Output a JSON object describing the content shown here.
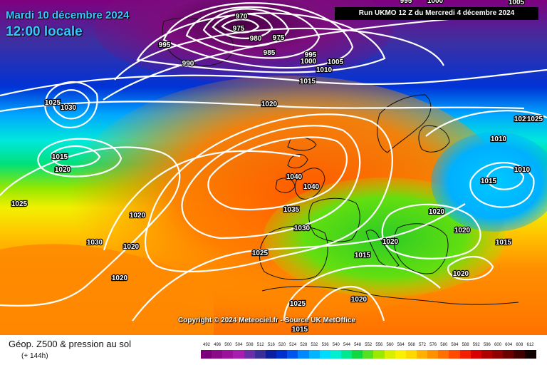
{
  "header": {
    "date": "Mardi 10 décembre 2024",
    "time": "12:00 locale",
    "run": "Run UKMO 12 Z du Mercredi 4 décembre 2024"
  },
  "copyright": "Copyright © 2024 Meteociel.fr - Source UK MetOffice",
  "footer": {
    "title": "Géop. Z500 & pression au sol",
    "subtitle": "(+ 144h)"
  },
  "scale": {
    "values": [
      "492",
      "496",
      "500",
      "504",
      "508",
      "512",
      "516",
      "520",
      "524",
      "528",
      "532",
      "536",
      "540",
      "544",
      "548",
      "552",
      "556",
      "560",
      "564",
      "568",
      "572",
      "576",
      "580",
      "584",
      "588",
      "592",
      "596",
      "600",
      "604",
      "608",
      "612"
    ],
    "colors": [
      "#7a007a",
      "#8a0a8a",
      "#9b119b",
      "#a51eb0",
      "#6a2fa8",
      "#3a2f9a",
      "#0b1fa0",
      "#0030cc",
      "#0055ee",
      "#0088ff",
      "#00b4ff",
      "#00dcff",
      "#00efd0",
      "#00e890",
      "#10d840",
      "#55e020",
      "#9be800",
      "#d8f000",
      "#fbf000",
      "#ffd800",
      "#ffb000",
      "#ff9000",
      "#ff7000",
      "#ff4a00",
      "#f02000",
      "#d80000",
      "#b00000",
      "#900000",
      "#6a0000",
      "#400000",
      "#100000"
    ]
  },
  "isobars": [
    {
      "text": "1025",
      "type": "pressure"
    },
    {
      "text": "1030",
      "type": "pressure"
    },
    {
      "text": "1015",
      "type": "pressure"
    },
    {
      "text": "1020",
      "type": "pressure"
    },
    {
      "text": "1025",
      "type": "pressure"
    },
    {
      "text": "1020",
      "type": "pressure"
    },
    {
      "text": "1030",
      "type": "pressure"
    },
    {
      "text": "1020",
      "type": "pressure"
    },
    {
      "text": "1020",
      "type": "pressure"
    },
    {
      "text": "995",
      "type": "pressure"
    },
    {
      "text": "990",
      "type": "pressure"
    },
    {
      "text": "985",
      "type": "pressure"
    },
    {
      "text": "980",
      "type": "pressure"
    },
    {
      "text": "975",
      "type": "pressure"
    },
    {
      "text": "975",
      "type": "pressure"
    },
    {
      "text": "970",
      "type": "pressure"
    },
    {
      "text": "995",
      "type": "pressure"
    },
    {
      "text": "1000",
      "type": "pressure"
    },
    {
      "text": "1005",
      "type": "pressure"
    },
    {
      "text": "1010",
      "type": "pressure"
    },
    {
      "text": "1015",
      "type": "pressure"
    },
    {
      "text": "1020",
      "type": "pressure"
    },
    {
      "text": "1040",
      "type": "pressure"
    },
    {
      "text": "1040",
      "type": "pressure"
    },
    {
      "text": "1035",
      "type": "pressure"
    },
    {
      "text": "1030",
      "type": "pressure"
    },
    {
      "text": "1025",
      "type": "pressure"
    },
    {
      "text": "1015",
      "type": "pressure"
    },
    {
      "text": "1020",
      "type": "pressure"
    },
    {
      "text": "1025",
      "type": "pressure"
    },
    {
      "text": "1020",
      "type": "pressure"
    },
    {
      "text": "1015",
      "type": "pressure"
    },
    {
      "text": "1010",
      "type": "pressure"
    },
    {
      "text": "1015",
      "type": "pressure"
    },
    {
      "text": "1020",
      "type": "pressure"
    },
    {
      "text": "1015",
      "type": "pressure"
    },
    {
      "text": "1010",
      "type": "pressure"
    },
    {
      "text": "1020",
      "type": "pressure"
    },
    {
      "text": "1025",
      "type": "pressure"
    },
    {
      "text": "1025",
      "type": "pressure"
    },
    {
      "text": "995",
      "type": "pressure"
    },
    {
      "text": "1000",
      "type": "pressure"
    },
    {
      "text": "1005",
      "type": "pressure"
    },
    {
      "text": "1020",
      "type": "pressure"
    }
  ]
}
